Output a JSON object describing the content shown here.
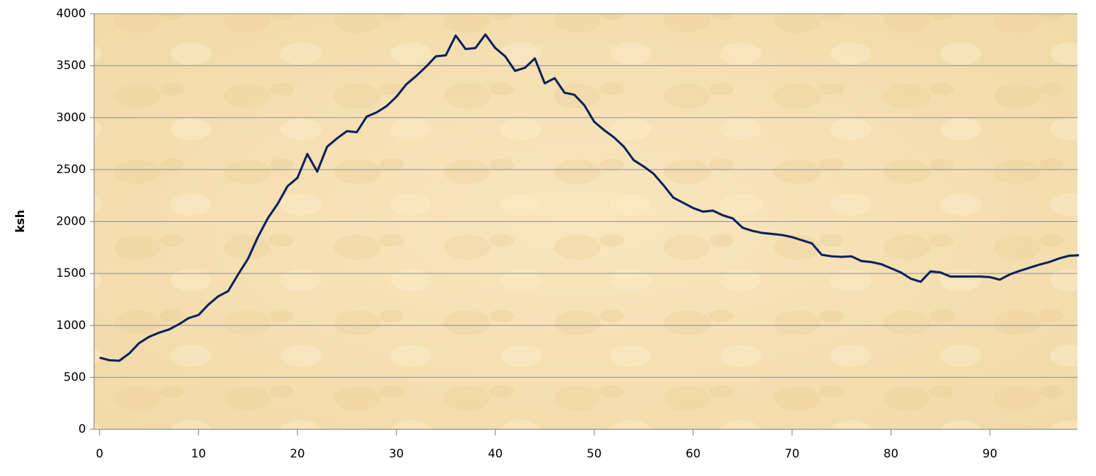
{
  "chart_data": {
    "type": "line",
    "y_label": "ksh",
    "x": [
      0,
      1,
      2,
      3,
      4,
      5,
      6,
      7,
      8,
      9,
      10,
      11,
      12,
      13,
      14,
      15,
      16,
      17,
      18,
      19,
      20,
      21,
      22,
      23,
      24,
      25,
      26,
      27,
      28,
      29,
      30,
      31,
      32,
      33,
      34,
      35,
      36,
      37,
      38,
      39,
      40,
      41,
      42,
      43,
      44,
      45,
      46,
      47,
      48,
      49,
      50,
      51,
      52,
      53,
      54,
      55,
      56,
      57,
      58,
      59,
      60,
      61,
      62,
      63,
      64,
      65,
      66,
      67,
      68,
      69,
      70,
      71,
      72,
      73,
      74,
      75,
      76,
      77,
      78,
      79,
      80,
      81,
      82,
      83,
      84,
      85,
      86,
      87,
      88,
      89,
      90,
      91,
      92,
      93,
      94,
      95,
      96,
      97,
      98,
      99
    ],
    "series": [
      {
        "name": "ksh",
        "color": "#0b2160",
        "values": [
          690,
          665,
          660,
          730,
          830,
          890,
          930,
          960,
          1010,
          1070,
          1100,
          1200,
          1280,
          1330,
          1490,
          1640,
          1850,
          2030,
          2170,
          2340,
          2420,
          2650,
          2480,
          2720,
          2800,
          2870,
          2860,
          3010,
          3050,
          3110,
          3200,
          3320,
          3400,
          3490,
          3590,
          3600,
          3790,
          3660,
          3670,
          3800,
          3670,
          3590,
          3450,
          3480,
          3570,
          3330,
          3380,
          3240,
          3220,
          3120,
          2960,
          2880,
          2810,
          2720,
          2590,
          2530,
          2460,
          2350,
          2230,
          2180,
          2130,
          2095,
          2105,
          2060,
          2030,
          1940,
          1910,
          1890,
          1880,
          1870,
          1850,
          1820,
          1790,
          1680,
          1665,
          1660,
          1665,
          1620,
          1610,
          1590,
          1550,
          1510,
          1450,
          1420,
          1520,
          1510,
          1470,
          1470,
          1470,
          1470,
          1465,
          1440,
          1490,
          1525,
          1555,
          1585,
          1610,
          1645,
          1670,
          1675
        ]
      }
    ],
    "xlim": [
      -0.55,
      98.85
    ],
    "xticks": [
      0,
      10,
      20,
      30,
      40,
      50,
      60,
      70,
      80,
      90
    ],
    "ylim": [
      0,
      4000
    ],
    "yticks": [
      0,
      500,
      1000,
      1500,
      2000,
      2500,
      3000,
      3500,
      4000
    ],
    "grid": true
  }
}
